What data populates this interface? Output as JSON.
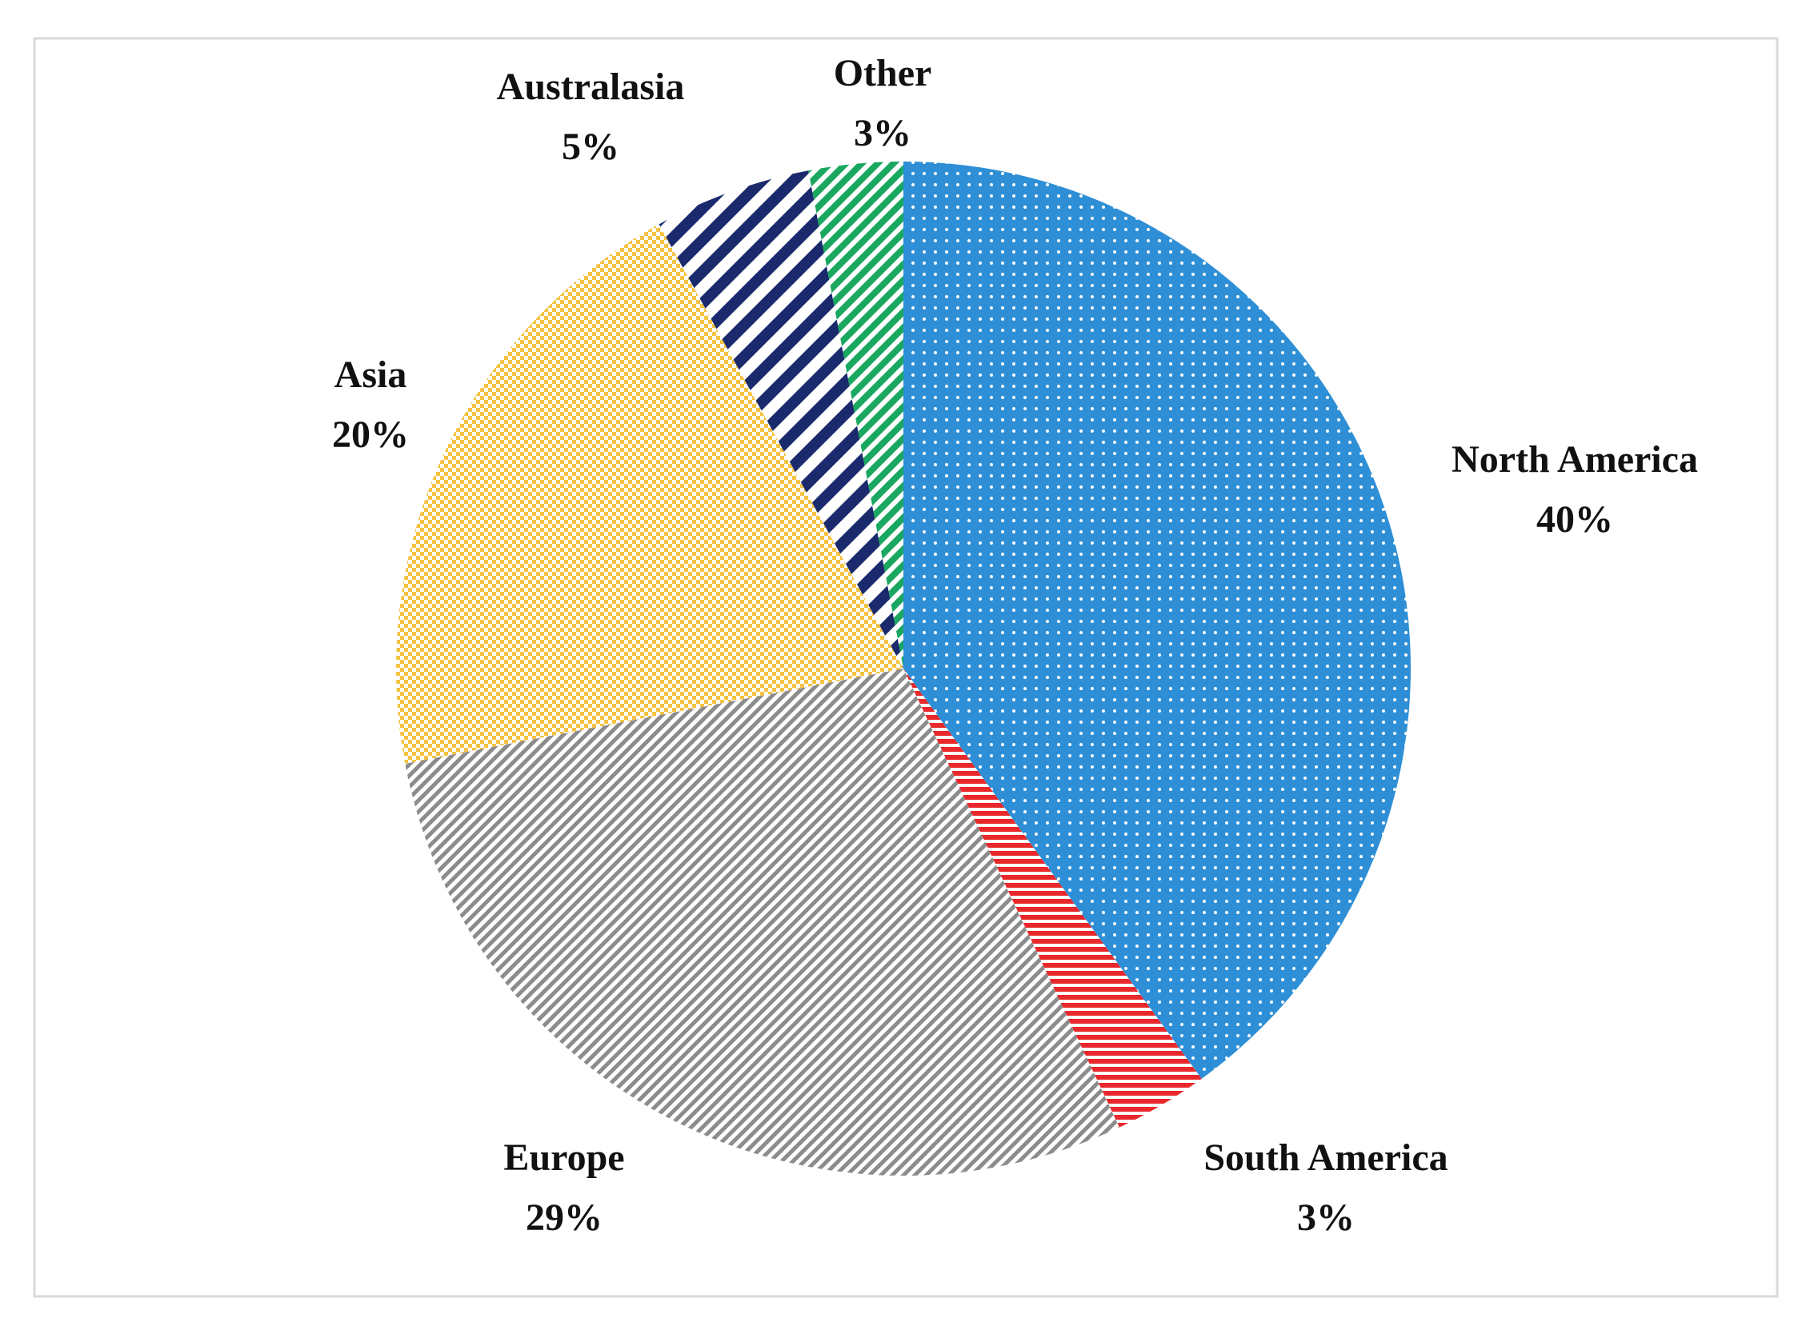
{
  "chart_data": {
    "type": "pie",
    "categories": [
      "North America",
      "South America",
      "Europe",
      "Asia",
      "Australasia",
      "Other"
    ],
    "values": [
      40,
      3,
      29,
      20,
      5,
      3
    ],
    "value_labels": [
      "40%",
      "3%",
      "29%",
      "20%",
      "5%",
      "3%"
    ],
    "colors": [
      "#2e8fd6",
      "#e8282a",
      "#8c8c8c",
      "#f5c242",
      "#1a2a6c",
      "#1aa760"
    ],
    "patterns": [
      "dots",
      "horizontal-stripes",
      "fine-diagonal",
      "checker",
      "wide-diagonal",
      "diagonal"
    ]
  }
}
